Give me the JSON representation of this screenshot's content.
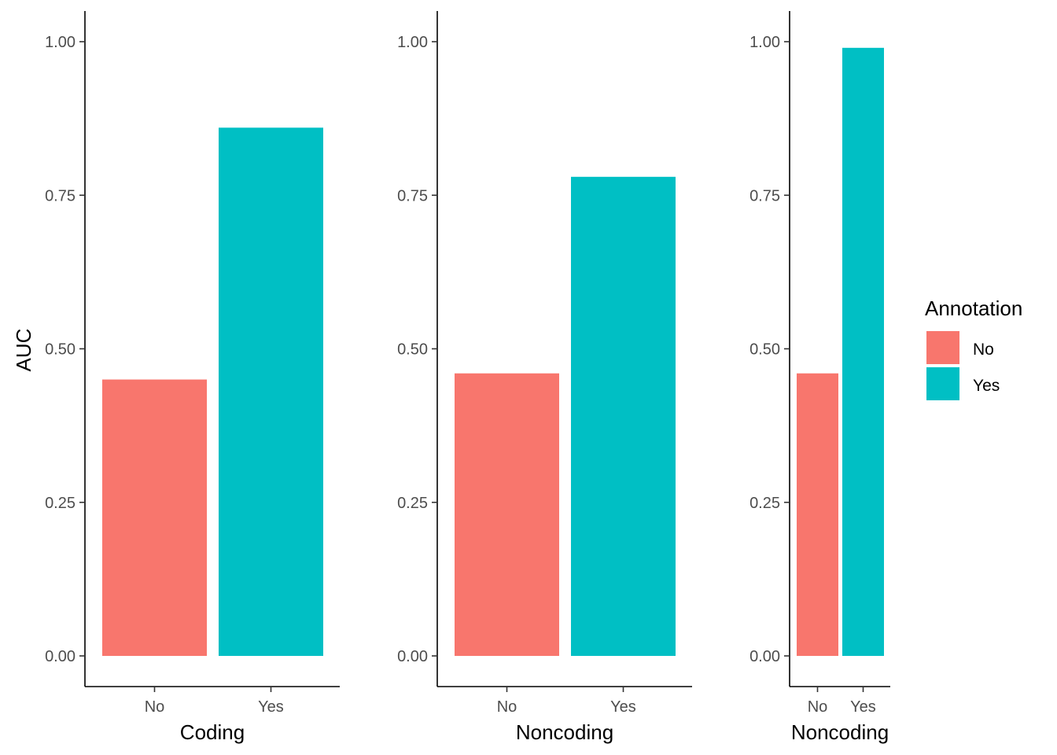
{
  "chart_data": {
    "type": "bar",
    "ylabel": "AUC",
    "ylim": [
      0,
      1.05
    ],
    "yticks": [
      "0.00",
      "0.25",
      "0.50",
      "0.75",
      "1.00"
    ],
    "ytick_values": [
      0,
      0.25,
      0.5,
      0.75,
      1.0
    ],
    "categories": [
      "No",
      "Yes"
    ],
    "colors": {
      "No": "#F8766D",
      "Yes": "#00BFC4"
    },
    "panels": [
      {
        "xlabel": "Coding",
        "values": [
          0.45,
          0.86
        ]
      },
      {
        "xlabel": "Noncoding",
        "values": [
          0.46,
          0.78
        ]
      },
      {
        "xlabel": "Noncoding",
        "values": [
          0.46,
          0.99
        ]
      }
    ],
    "legend": {
      "title": "Annotation",
      "position": "right",
      "entries": [
        {
          "label": "No",
          "color": "#F8766D"
        },
        {
          "label": "Yes",
          "color": "#00BFC4"
        }
      ]
    }
  }
}
